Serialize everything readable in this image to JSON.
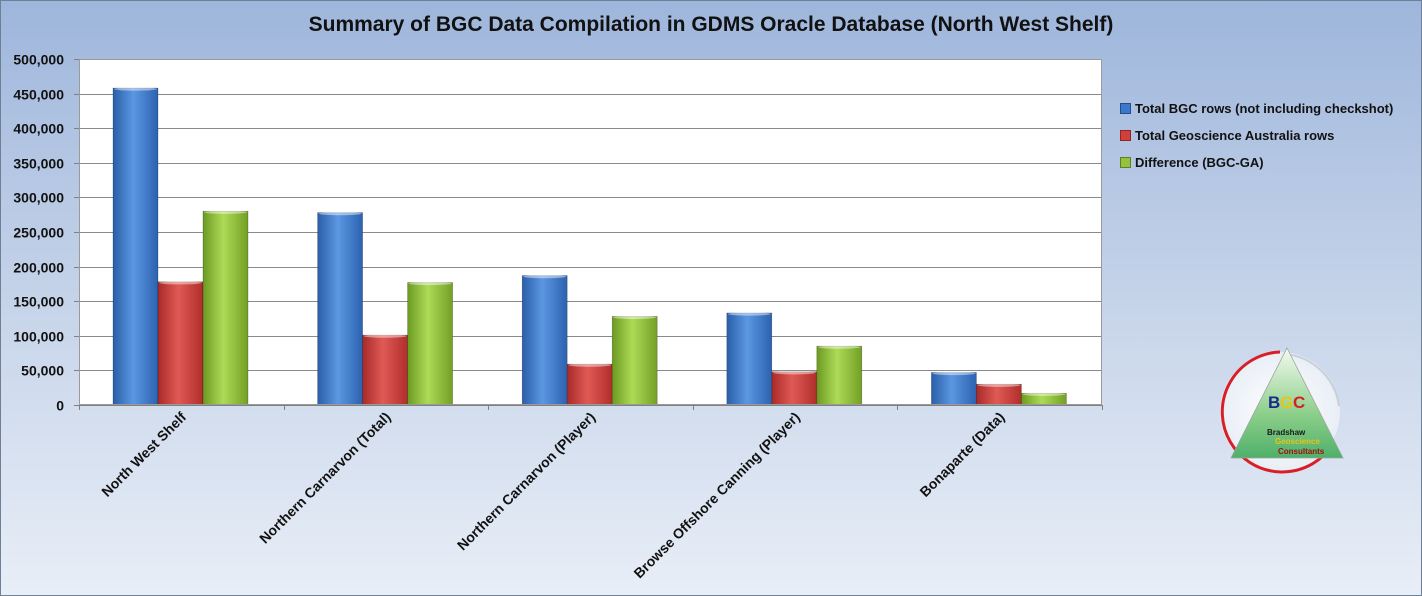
{
  "chart_data": {
    "type": "bar",
    "title": "Summary of BGC Data Compilation in GDMS Oracle Database (North West Shelf)",
    "xlabel": "",
    "ylabel": "",
    "categories": [
      "North West Shelf",
      "Northern Carnarvon (Total)",
      "Northern Carnarvon (Player)",
      "Browse Offshore Canning (Player)",
      "Bonaparte (Data)"
    ],
    "series": [
      {
        "name": "Total BGC rows (not including checkshot)",
        "color": "#3a78d0",
        "values": [
          458000,
          278000,
          187000,
          133000,
          47000
        ]
      },
      {
        "name": "Total Geoscience Australia rows",
        "color": "#d33e3b",
        "values": [
          178000,
          101000,
          59000,
          48000,
          30000
        ]
      },
      {
        "name": "Difference (BGC-GA)",
        "color": "#93c23c",
        "values": [
          280000,
          177000,
          128000,
          85000,
          17000
        ]
      }
    ],
    "ylim": [
      0,
      500000
    ],
    "yticks": [
      0,
      50000,
      100000,
      150000,
      200000,
      250000,
      300000,
      350000,
      400000,
      450000,
      500000
    ],
    "ytick_labels": [
      "0",
      "50,000",
      "100,000",
      "150,000",
      "200,000",
      "250,000",
      "300,000",
      "350,000",
      "400,000",
      "450,000",
      "500,000"
    ],
    "grid": true,
    "legend_position": "right"
  },
  "logo": {
    "letters": [
      "B",
      "G",
      "C"
    ],
    "line1": "Bradshaw",
    "line2": "Geoscience",
    "line3": "Consultants"
  }
}
